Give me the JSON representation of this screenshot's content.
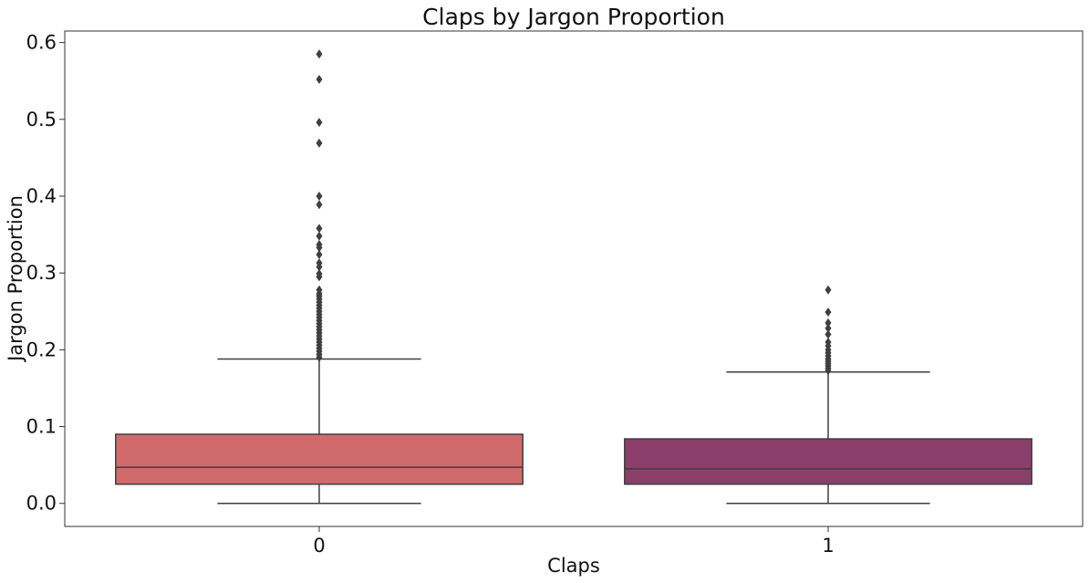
{
  "chart_data": {
    "type": "box",
    "title": "Claps by Jargon Proportion",
    "xlabel": "Claps",
    "ylabel": "Jargon Proportion",
    "categories": [
      "0",
      "1"
    ],
    "ylim": [
      -0.03,
      0.615
    ],
    "yticks": [
      "0.0",
      "0.1",
      "0.2",
      "0.3",
      "0.4",
      "0.5",
      "0.6"
    ],
    "grid": false,
    "boxes": [
      {
        "category": "0",
        "color": "#d16b6b",
        "whisker_low": 0.0,
        "q1": 0.025,
        "median": 0.047,
        "q3": 0.09,
        "whisker_high": 0.188,
        "outliers": [
          0.585,
          0.552,
          0.496,
          0.469,
          0.4,
          0.389,
          0.358,
          0.348,
          0.337,
          0.333,
          0.324,
          0.313,
          0.308,
          0.299,
          0.295,
          0.278,
          0.273,
          0.27,
          0.266,
          0.262,
          0.258,
          0.254,
          0.25,
          0.246,
          0.242,
          0.238,
          0.234,
          0.23,
          0.226,
          0.222,
          0.218,
          0.214,
          0.21,
          0.206,
          0.202,
          0.198,
          0.194,
          0.19
        ]
      },
      {
        "category": "1",
        "color": "#8a3f6a",
        "whisker_low": 0.0,
        "q1": 0.025,
        "median": 0.045,
        "q3": 0.084,
        "whisker_high": 0.171,
        "outliers": [
          0.278,
          0.249,
          0.235,
          0.228,
          0.22,
          0.21,
          0.205,
          0.2,
          0.196,
          0.192,
          0.188,
          0.185,
          0.182,
          0.179,
          0.176,
          0.173
        ]
      }
    ]
  }
}
